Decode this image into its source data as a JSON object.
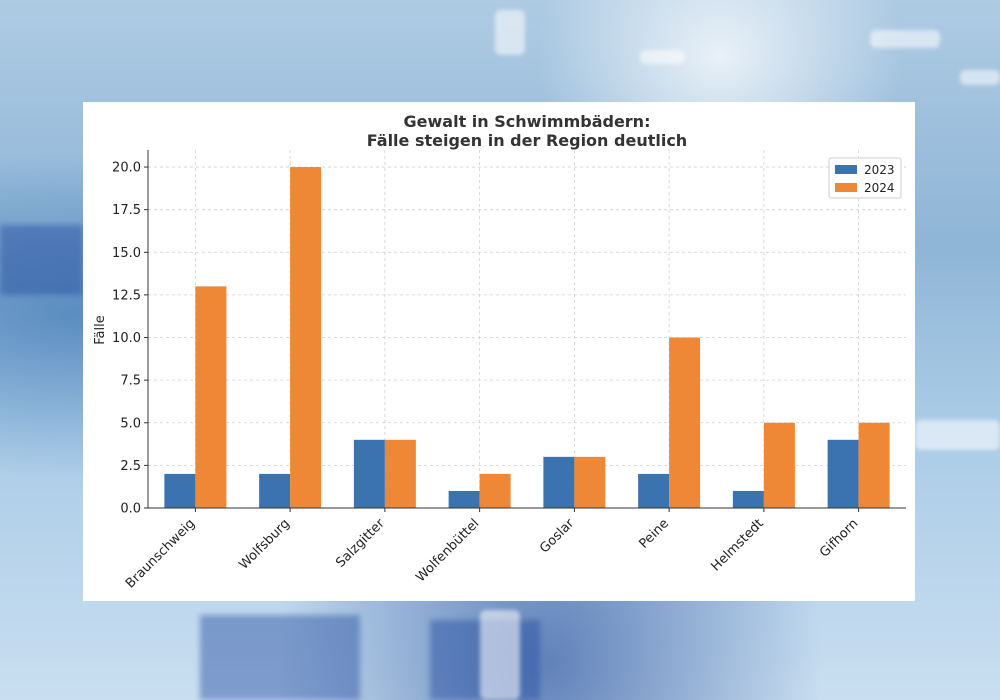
{
  "chart_data": {
    "type": "bar",
    "title_lines": [
      "Gewalt in Schwimmbädern:",
      "Fälle steigen in der Region deutlich"
    ],
    "xlabel": "",
    "ylabel": "Fälle",
    "categories": [
      "Braunschweig",
      "Wolfsburg",
      "Salzgitter",
      "Wolfenbüttel",
      "Goslar",
      "Peine",
      "Helmstedt",
      "Gifhorn"
    ],
    "series": [
      {
        "name": "2023",
        "color": "#3a73b0",
        "values": [
          2,
          2,
          4,
          1,
          3,
          2,
          1,
          4
        ]
      },
      {
        "name": "2024",
        "color": "#ee8836",
        "values": [
          13,
          20,
          4,
          2,
          3,
          10,
          5,
          5
        ]
      }
    ],
    "ylim": [
      0,
      21
    ],
    "yticks": [
      "0.0",
      "2.5",
      "5.0",
      "7.5",
      "10.0",
      "12.5",
      "15.0",
      "17.5",
      "20.0"
    ],
    "grid": true,
    "legend_position": "top-right"
  }
}
